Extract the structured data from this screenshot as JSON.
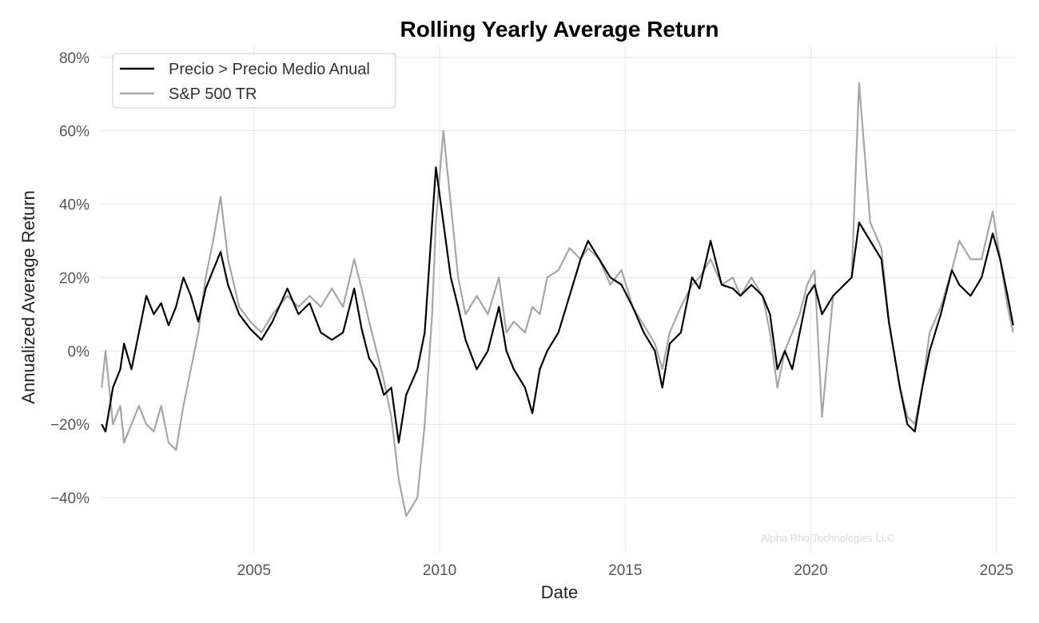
{
  "chart_data": {
    "type": "line",
    "title": "Rolling Yearly Average Return",
    "xlabel": "Date",
    "ylabel": "Annualized Average Return",
    "xlim": [
      2000.85,
      2025.5
    ],
    "ylim": [
      -0.55,
      0.83
    ],
    "x_ticks": [
      2005,
      2010,
      2015,
      2020,
      2025
    ],
    "x_tick_labels": [
      "2005",
      "2010",
      "2015",
      "2020",
      "2025"
    ],
    "y_ticks": [
      -0.4,
      -0.2,
      0.0,
      0.2,
      0.4,
      0.6,
      0.8
    ],
    "y_tick_labels": [
      "−40%",
      "−20%",
      "0%",
      "20%",
      "40%",
      "60%",
      "80%"
    ],
    "grid": true,
    "legend_position": "top-left",
    "watermark": "Alpha Rho Technologies LLC",
    "series": [
      {
        "name": "Precio > Precio Medio Anual",
        "color": "#000000",
        "x": [
          2000.9,
          2001.0,
          2001.2,
          2001.4,
          2001.5,
          2001.7,
          2001.9,
          2002.1,
          2002.3,
          2002.5,
          2002.7,
          2002.9,
          2003.1,
          2003.3,
          2003.5,
          2003.7,
          2003.9,
          2004.1,
          2004.3,
          2004.6,
          2004.9,
          2005.2,
          2005.5,
          2005.9,
          2006.2,
          2006.5,
          2006.8,
          2007.1,
          2007.4,
          2007.7,
          2007.9,
          2008.1,
          2008.3,
          2008.5,
          2008.7,
          2008.9,
          2009.1,
          2009.4,
          2009.6,
          2009.8,
          2009.9,
          2010.1,
          2010.3,
          2010.5,
          2010.7,
          2011.0,
          2011.3,
          2011.6,
          2011.8,
          2012.0,
          2012.3,
          2012.5,
          2012.7,
          2012.9,
          2013.2,
          2013.5,
          2013.8,
          2014.0,
          2014.3,
          2014.6,
          2014.9,
          2015.2,
          2015.5,
          2015.8,
          2016.0,
          2016.2,
          2016.5,
          2016.8,
          2017.0,
          2017.3,
          2017.6,
          2017.9,
          2018.1,
          2018.4,
          2018.7,
          2018.9,
          2019.1,
          2019.3,
          2019.5,
          2019.7,
          2019.9,
          2020.1,
          2020.3,
          2020.6,
          2020.9,
          2021.1,
          2021.3,
          2021.6,
          2021.9,
          2022.1,
          2022.4,
          2022.6,
          2022.8,
          2023.0,
          2023.2,
          2023.5,
          2023.8,
          2024.0,
          2024.3,
          2024.6,
          2024.9,
          2025.1,
          2025.3,
          2025.45
        ],
        "values": [
          -0.2,
          -0.22,
          -0.1,
          -0.05,
          0.02,
          -0.05,
          0.05,
          0.15,
          0.1,
          0.13,
          0.07,
          0.12,
          0.2,
          0.15,
          0.08,
          0.17,
          0.22,
          0.27,
          0.18,
          0.1,
          0.06,
          0.03,
          0.08,
          0.17,
          0.1,
          0.13,
          0.05,
          0.03,
          0.05,
          0.17,
          0.06,
          -0.02,
          -0.05,
          -0.12,
          -0.1,
          -0.25,
          -0.12,
          -0.05,
          0.05,
          0.35,
          0.5,
          0.35,
          0.2,
          0.12,
          0.03,
          -0.05,
          0.0,
          0.12,
          0.0,
          -0.05,
          -0.1,
          -0.17,
          -0.05,
          0.0,
          0.05,
          0.15,
          0.25,
          0.3,
          0.25,
          0.2,
          0.18,
          0.12,
          0.05,
          0.0,
          -0.1,
          0.02,
          0.05,
          0.2,
          0.17,
          0.3,
          0.18,
          0.17,
          0.15,
          0.18,
          0.15,
          0.1,
          -0.05,
          0.0,
          -0.05,
          0.05,
          0.15,
          0.18,
          0.1,
          0.15,
          0.18,
          0.2,
          0.35,
          0.3,
          0.25,
          0.08,
          -0.1,
          -0.2,
          -0.22,
          -0.1,
          0.0,
          0.1,
          0.22,
          0.18,
          0.15,
          0.2,
          0.32,
          0.25,
          0.15,
          0.07
        ]
      },
      {
        "name": "S&P 500 TR",
        "color": "#a6a6a6",
        "x": [
          2000.9,
          2001.0,
          2001.2,
          2001.4,
          2001.5,
          2001.7,
          2001.9,
          2002.1,
          2002.3,
          2002.5,
          2002.7,
          2002.9,
          2003.1,
          2003.3,
          2003.5,
          2003.7,
          2003.9,
          2004.1,
          2004.3,
          2004.6,
          2004.9,
          2005.2,
          2005.5,
          2005.9,
          2006.2,
          2006.5,
          2006.8,
          2007.1,
          2007.4,
          2007.7,
          2007.9,
          2008.1,
          2008.3,
          2008.5,
          2008.7,
          2008.9,
          2009.1,
          2009.4,
          2009.6,
          2009.8,
          2009.9,
          2010.1,
          2010.3,
          2010.5,
          2010.7,
          2011.0,
          2011.3,
          2011.6,
          2011.8,
          2012.0,
          2012.3,
          2012.5,
          2012.7,
          2012.9,
          2013.2,
          2013.5,
          2013.8,
          2014.0,
          2014.3,
          2014.6,
          2014.9,
          2015.2,
          2015.5,
          2015.8,
          2016.0,
          2016.2,
          2016.5,
          2016.8,
          2017.0,
          2017.3,
          2017.6,
          2017.9,
          2018.1,
          2018.4,
          2018.7,
          2018.9,
          2019.1,
          2019.3,
          2019.5,
          2019.7,
          2019.9,
          2020.1,
          2020.3,
          2020.6,
          2020.9,
          2021.1,
          2021.3,
          2021.6,
          2021.9,
          2022.1,
          2022.4,
          2022.6,
          2022.8,
          2023.0,
          2023.2,
          2023.5,
          2023.8,
          2024.0,
          2024.3,
          2024.6,
          2024.9,
          2025.1,
          2025.3,
          2025.45
        ],
        "values": [
          -0.1,
          0.0,
          -0.2,
          -0.15,
          -0.25,
          -0.2,
          -0.15,
          -0.2,
          -0.22,
          -0.15,
          -0.25,
          -0.27,
          -0.15,
          -0.05,
          0.05,
          0.2,
          0.3,
          0.42,
          0.25,
          0.12,
          0.08,
          0.05,
          0.1,
          0.15,
          0.12,
          0.15,
          0.12,
          0.17,
          0.12,
          0.25,
          0.17,
          0.08,
          0.0,
          -0.08,
          -0.18,
          -0.35,
          -0.45,
          -0.4,
          -0.2,
          0.1,
          0.35,
          0.6,
          0.4,
          0.2,
          0.1,
          0.15,
          0.1,
          0.2,
          0.05,
          0.08,
          0.05,
          0.12,
          0.1,
          0.2,
          0.22,
          0.28,
          0.25,
          0.28,
          0.25,
          0.18,
          0.22,
          0.12,
          0.07,
          0.02,
          -0.05,
          0.05,
          0.12,
          0.18,
          0.2,
          0.25,
          0.18,
          0.2,
          0.15,
          0.2,
          0.15,
          0.05,
          -0.1,
          0.0,
          0.05,
          0.1,
          0.18,
          0.22,
          -0.18,
          0.15,
          0.18,
          0.2,
          0.73,
          0.35,
          0.28,
          0.08,
          -0.1,
          -0.18,
          -0.2,
          -0.1,
          0.05,
          0.12,
          0.22,
          0.3,
          0.25,
          0.25,
          0.38,
          0.25,
          0.12,
          0.05
        ]
      }
    ]
  }
}
